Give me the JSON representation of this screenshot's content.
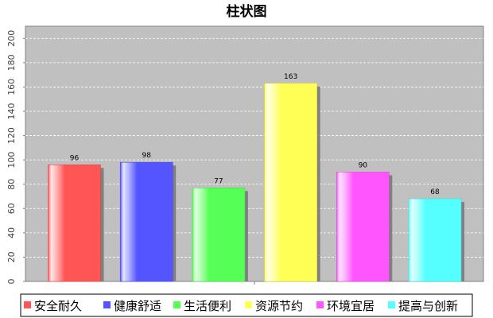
{
  "chart_data": {
    "type": "bar",
    "title": "柱状图",
    "categories": [
      "安全耐久",
      "健康舒适",
      "生活便利",
      "资源节约",
      "环境宜居",
      "提高与创新"
    ],
    "values": [
      96,
      98,
      77,
      163,
      90,
      68
    ],
    "colors": [
      "#ff5555",
      "#5555ff",
      "#55ff55",
      "#ffff55",
      "#ff55ff",
      "#55ffff"
    ],
    "ylim": [
      0,
      210
    ],
    "yticks": [
      0,
      20,
      40,
      60,
      80,
      100,
      120,
      140,
      160,
      180,
      200
    ],
    "xlabel": "",
    "ylabel": "",
    "grid": true,
    "legend_position": "bottom",
    "plot_background": "#c0c0c0"
  }
}
